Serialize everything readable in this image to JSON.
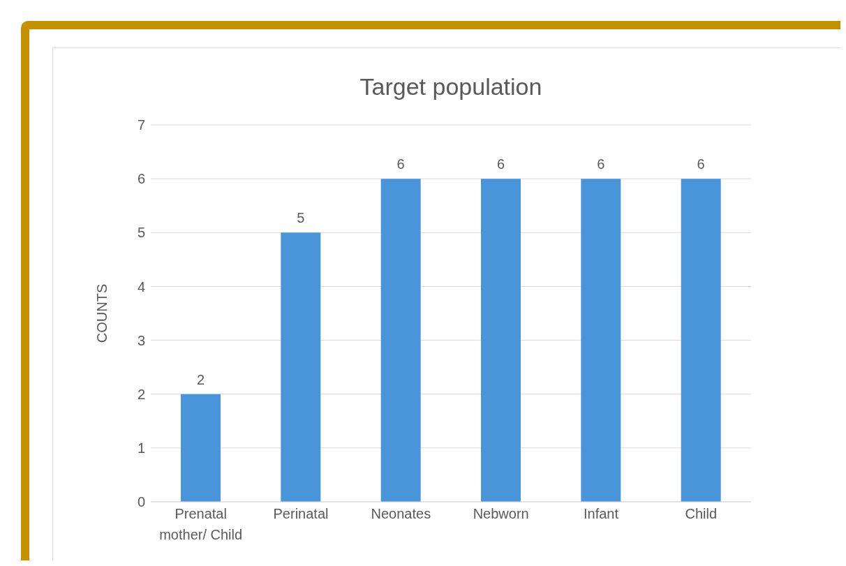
{
  "chart_data": {
    "type": "bar",
    "title": "Target population",
    "ylabel": "COUNTS",
    "categories": [
      "Prenatal mother/ Child",
      "Perinatal",
      "Neonates",
      "Nebworn",
      "Infant",
      "Child"
    ],
    "values": [
      2,
      5,
      6,
      6,
      6,
      6
    ],
    "color": "#4a95d9",
    "ylim": [
      0,
      7
    ],
    "yticks": [
      0,
      1,
      2,
      3,
      4,
      5,
      6,
      7
    ],
    "grid": "y",
    "data_labels": true
  }
}
